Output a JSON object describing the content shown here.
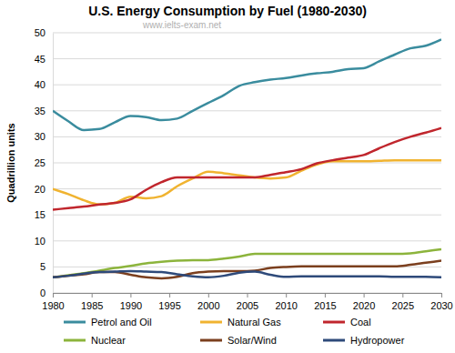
{
  "chart_data": {
    "type": "line",
    "title": "U.S. Energy Consumption by Fuel (1980-2030)",
    "y_label": "Quadrillion units",
    "annotations": [
      "www.ielts-exam.net"
    ],
    "x": [
      1980,
      1982,
      1984,
      1986,
      1988,
      1990,
      1992,
      1994,
      1996,
      1998,
      2000,
      2002,
      2004,
      2006,
      2008,
      2010,
      2012,
      2014,
      2016,
      2018,
      2020,
      2022,
      2024,
      2026,
      2028,
      2030
    ],
    "xlim": [
      1980,
      2030
    ],
    "xticks": [
      1980,
      1985,
      1990,
      1995,
      2000,
      2005,
      2010,
      2015,
      2020,
      2025,
      2030
    ],
    "ylim": [
      0,
      50
    ],
    "yticks": [
      0,
      5,
      10,
      15,
      20,
      25,
      30,
      35,
      40,
      45,
      50
    ],
    "grid": true,
    "legend": "bottom",
    "series": [
      {
        "name": "Petrol and Oil",
        "color": "#3a8c9e",
        "values": [
          35,
          33,
          31.3,
          31.5,
          32.8,
          34,
          33.8,
          33.2,
          33.5,
          35,
          36.5,
          38,
          39.8,
          40.5,
          41,
          41.3,
          41.8,
          42.2,
          42.5,
          43,
          43.2,
          44.5,
          45.8,
          47,
          47.5,
          48.7
        ]
      },
      {
        "name": "Natural Gas",
        "color": "#f0b330",
        "values": [
          20,
          19,
          17.8,
          17,
          17.3,
          18.5,
          18.2,
          18.6,
          20.5,
          22,
          23.3,
          23,
          22.6,
          22.2,
          22,
          22.2,
          23.5,
          24.7,
          25.3,
          25.3,
          25.3,
          25.4,
          25.5,
          25.5,
          25.5,
          25.5
        ]
      },
      {
        "name": "Coal",
        "color": "#c0262d",
        "values": [
          16,
          16.3,
          16.6,
          17,
          17.3,
          18,
          19.8,
          21.3,
          22.2,
          22.2,
          22.2,
          22.2,
          22.2,
          22.2,
          22.7,
          23.2,
          23.8,
          24.9,
          25.5,
          26,
          26.5,
          27.8,
          29,
          30,
          30.8,
          31.7
        ]
      },
      {
        "name": "Nuclear",
        "color": "#8cb43c",
        "values": [
          3,
          3.4,
          3.8,
          4.3,
          4.8,
          5.2,
          5.7,
          6,
          6.2,
          6.3,
          6.3,
          6.6,
          7,
          7.5,
          7.5,
          7.5,
          7.5,
          7.5,
          7.5,
          7.5,
          7.5,
          7.5,
          7.5,
          7.6,
          8,
          8.4
        ]
      },
      {
        "name": "Solar/Wind",
        "color": "#7b3f1e",
        "values": [
          3,
          3.3,
          3.6,
          4,
          4,
          3.5,
          3,
          2.8,
          3.1,
          3.8,
          4.1,
          4.2,
          4.2,
          4.3,
          4.8,
          5,
          5.1,
          5.1,
          5.1,
          5.1,
          5.1,
          5.1,
          5.1,
          5.4,
          5.8,
          6.2
        ]
      },
      {
        "name": "Hydropower",
        "color": "#2e4a7a",
        "values": [
          3,
          3.3,
          3.7,
          4,
          4.1,
          4.2,
          4.1,
          4,
          3.6,
          3.2,
          3,
          3.3,
          3.9,
          4.1,
          3.5,
          3.1,
          3.2,
          3.2,
          3.2,
          3.2,
          3.2,
          3.2,
          3.1,
          3.1,
          3.1,
          3
        ]
      }
    ]
  }
}
